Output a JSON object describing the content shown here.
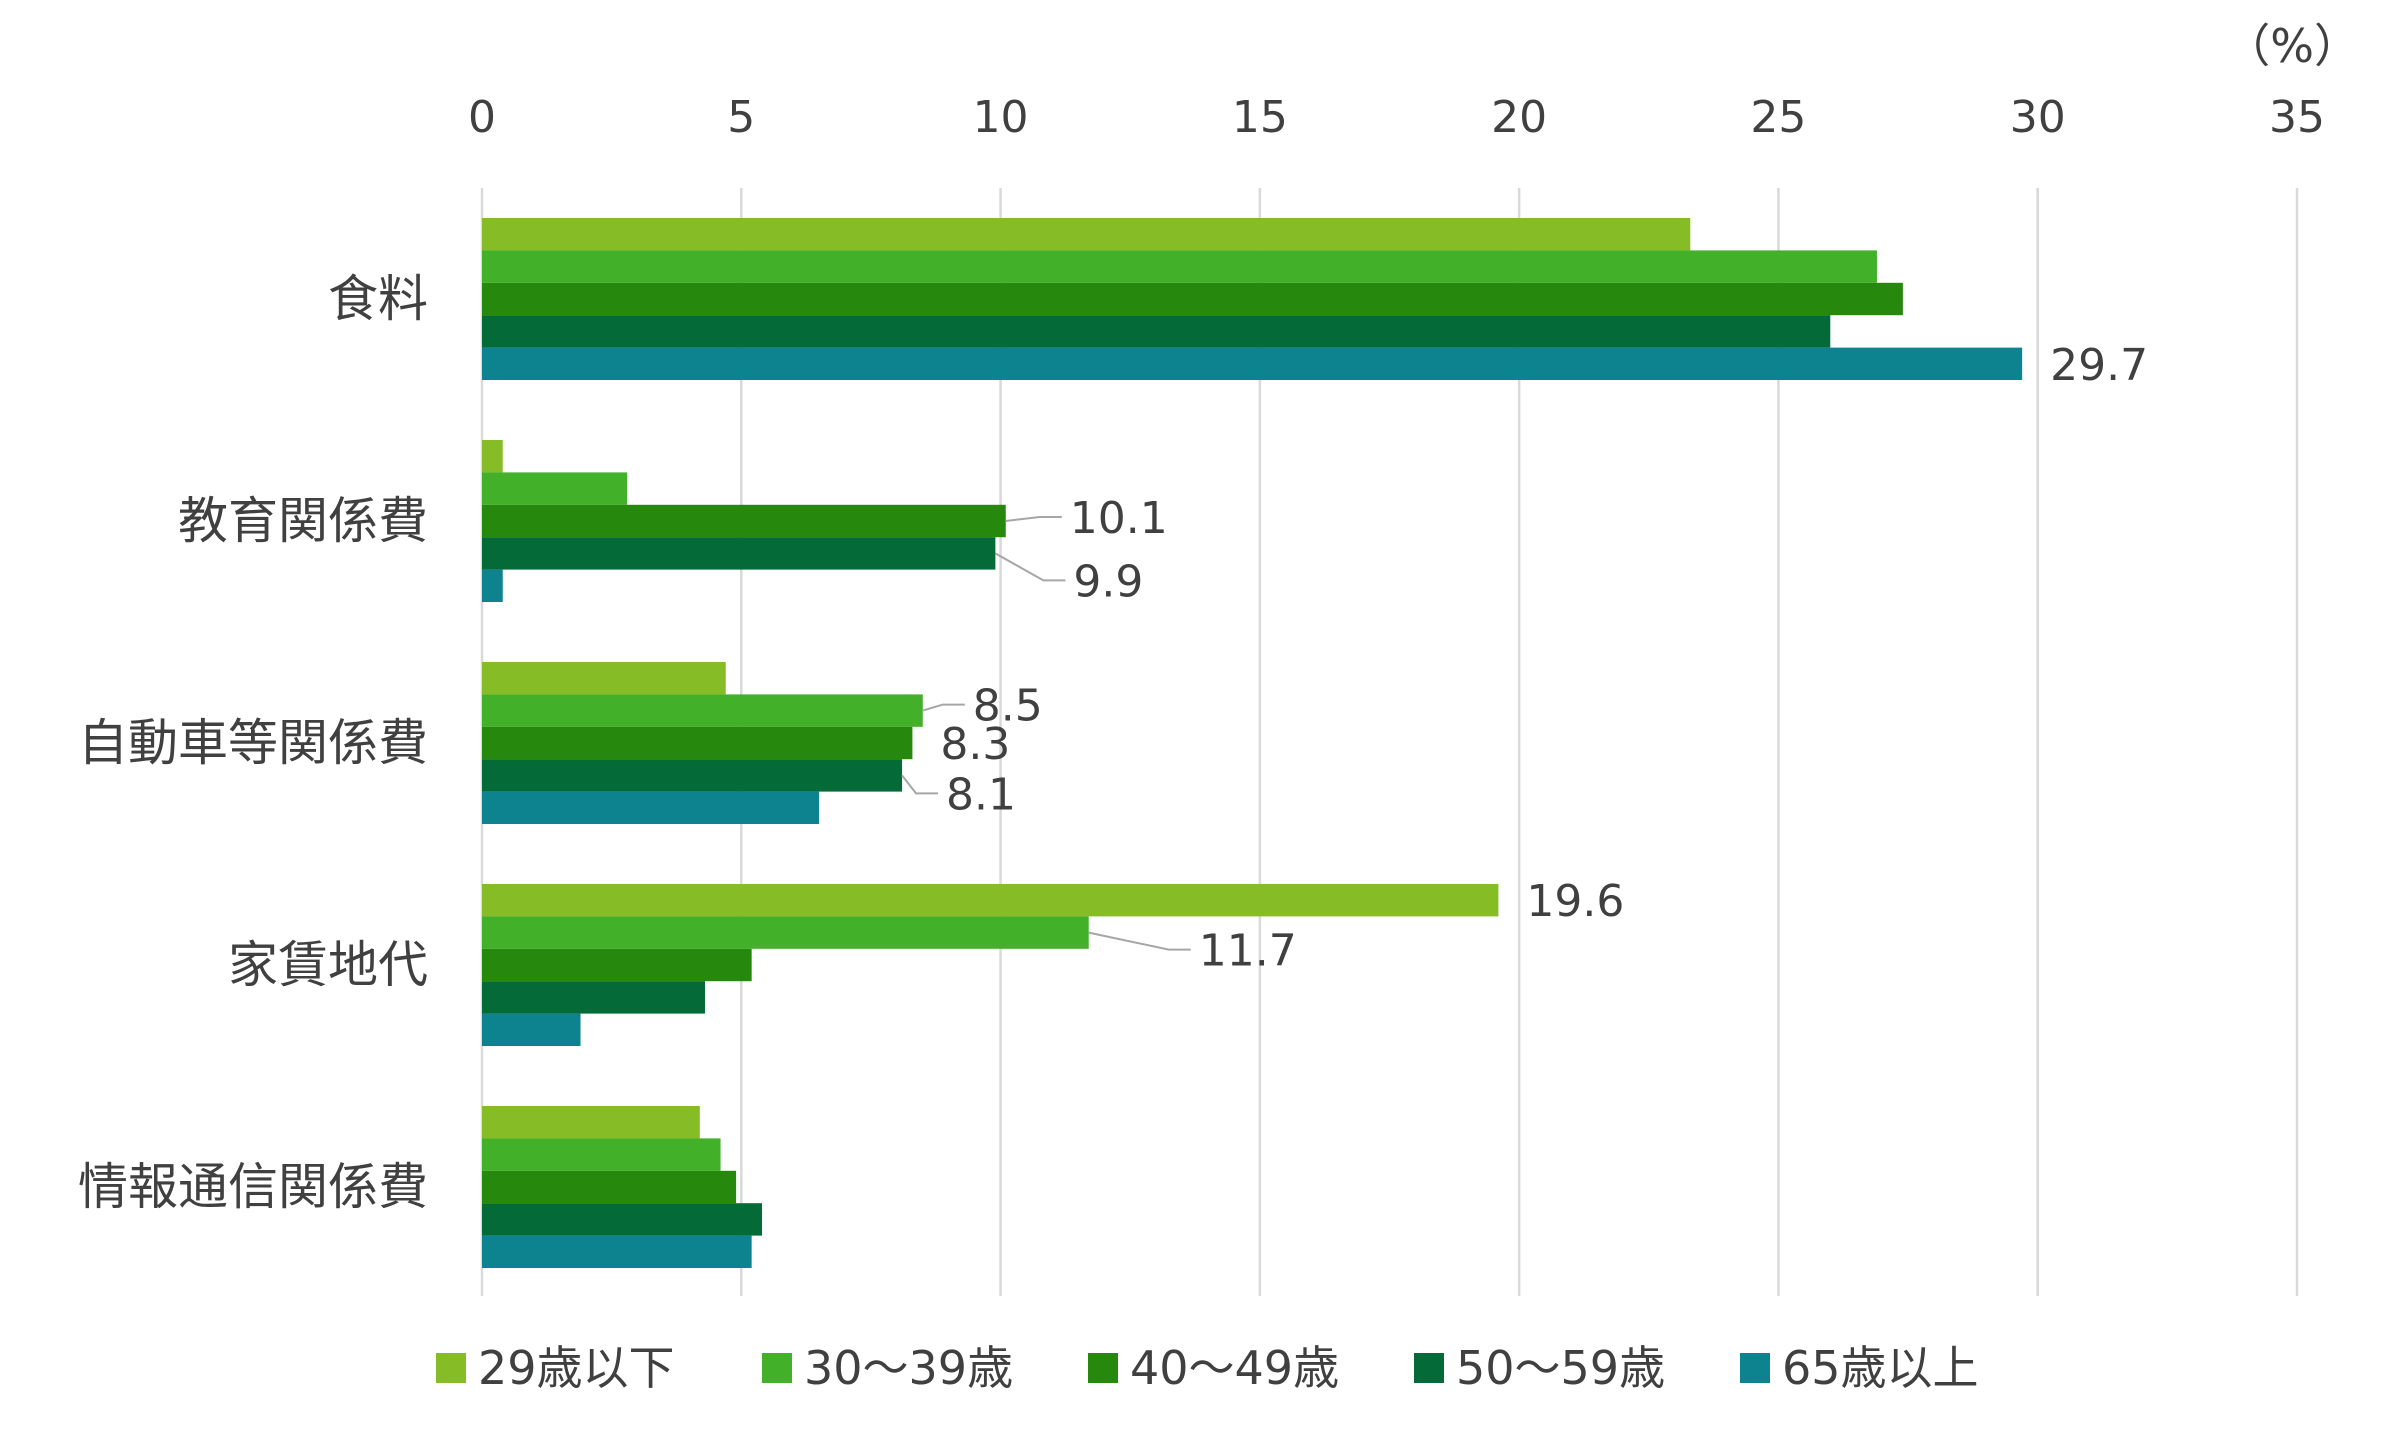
{
  "chart_data": {
    "type": "bar",
    "orientation": "horizontal",
    "unit_label": "（%）",
    "xlim": [
      0,
      35
    ],
    "x_ticks": [
      "0",
      "5",
      "10",
      "15",
      "20",
      "25",
      "30",
      "35"
    ],
    "grid": true,
    "legend_position": "bottom",
    "categories": [
      "食料",
      "教育関係費",
      "自動車等関係費",
      "家賃地代",
      "情報通信関係費"
    ],
    "series": [
      {
        "name": "29歳以下",
        "color": "#86BC25",
        "values": [
          23.3,
          0.4,
          4.7,
          19.6,
          4.2
        ]
      },
      {
        "name": "30～39歳",
        "color": "#43B02A",
        "values": [
          26.9,
          2.8,
          8.5,
          11.7,
          4.6
        ]
      },
      {
        "name": "40～49歳",
        "color": "#26890D",
        "values": [
          27.4,
          10.1,
          8.3,
          5.2,
          4.9
        ]
      },
      {
        "name": "50～59歳",
        "color": "#046A38",
        "values": [
          26.0,
          9.9,
          8.1,
          4.3,
          5.4
        ]
      },
      {
        "name": "65歳以上",
        "color": "#0D8390",
        "values": [
          29.7,
          0.4,
          6.5,
          1.9,
          5.2
        ]
      }
    ],
    "data_labels": [
      {
        "category": 0,
        "series": 4,
        "text": "29.7"
      },
      {
        "category": 1,
        "series": 2,
        "text": "10.1"
      },
      {
        "category": 1,
        "series": 3,
        "text": "9.9"
      },
      {
        "category": 2,
        "series": 1,
        "text": "8.5"
      },
      {
        "category": 2,
        "series": 2,
        "text": "8.3"
      },
      {
        "category": 2,
        "series": 3,
        "text": "8.1"
      },
      {
        "category": 3,
        "series": 0,
        "text": "19.6"
      },
      {
        "category": 3,
        "series": 1,
        "text": "11.7"
      }
    ]
  }
}
